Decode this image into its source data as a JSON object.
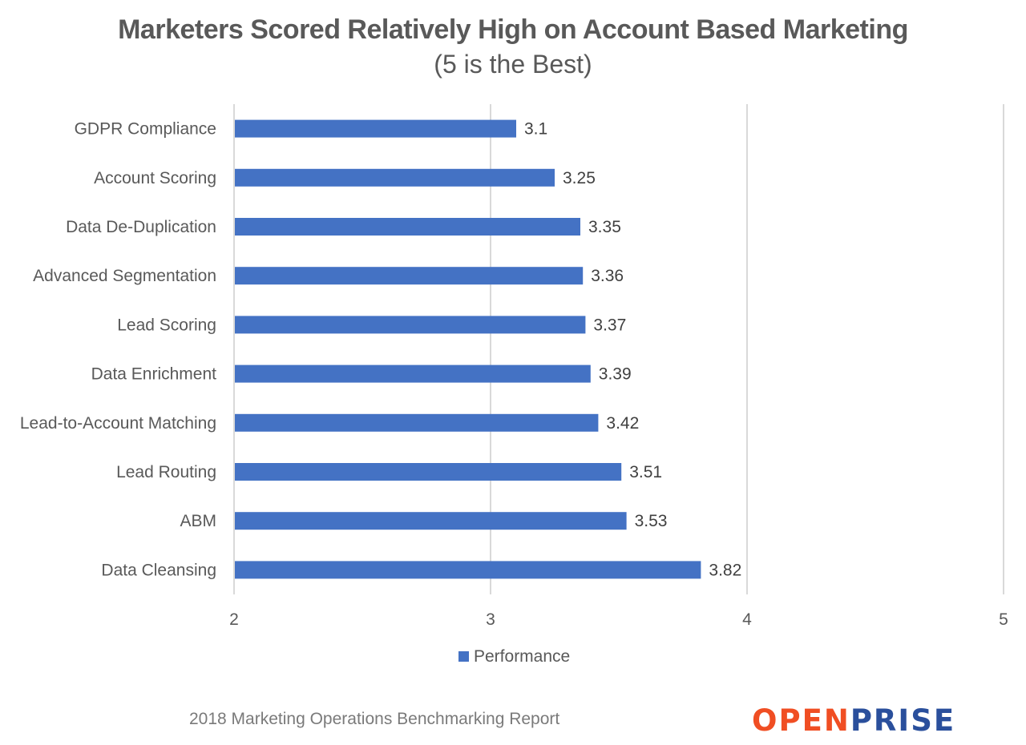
{
  "header": {
    "title": "Marketers Scored Relatively High on Account Based Marketing",
    "subtitle": "(5 is the Best)"
  },
  "footer": {
    "source_note": "2018 Marketing Operations Benchmarking Report",
    "logo_part1": "OPEN",
    "logo_part2": "PRISE"
  },
  "colors": {
    "bar": "#4472c4",
    "grid": "#d9d9d9",
    "text": "#595959",
    "logo_orange": "#f04e23",
    "logo_blue": "#2a4f9c"
  },
  "chart_data": {
    "type": "bar",
    "orientation": "horizontal",
    "title": "Marketers Scored Relatively High on Account Based Marketing",
    "subtitle": "(5 is the Best)",
    "categories": [
      "GDPR Compliance",
      "Account Scoring",
      "Data De-Duplication",
      "Advanced Segmentation",
      "Lead Scoring",
      "Data Enrichment",
      "Lead-to-Account Matching",
      "Lead Routing",
      "ABM",
      "Data Cleansing"
    ],
    "series": [
      {
        "name": "Performance",
        "values": [
          3.1,
          3.25,
          3.35,
          3.36,
          3.37,
          3.39,
          3.42,
          3.51,
          3.53,
          3.82
        ],
        "labels": [
          "3.1",
          "3.25",
          "3.35",
          "3.36",
          "3.37",
          "3.39",
          "3.42",
          "3.51",
          "3.53",
          "3.82"
        ]
      }
    ],
    "xlim": [
      2,
      5
    ],
    "xticks": [
      "2",
      "3",
      "4",
      "5"
    ],
    "grid": "vertical",
    "legend": "bottom-center",
    "xlabel": "",
    "ylabel": ""
  }
}
